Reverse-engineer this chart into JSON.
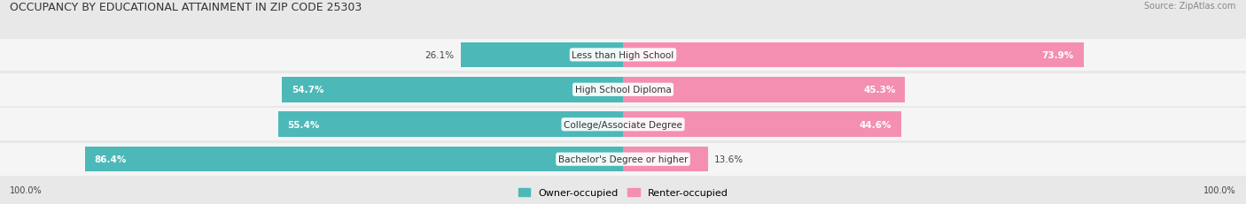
{
  "title": "OCCUPANCY BY EDUCATIONAL ATTAINMENT IN ZIP CODE 25303",
  "source": "Source: ZipAtlas.com",
  "categories": [
    "Less than High School",
    "High School Diploma",
    "College/Associate Degree",
    "Bachelor's Degree or higher"
  ],
  "owner_pct": [
    26.1,
    54.7,
    55.4,
    86.4
  ],
  "renter_pct": [
    73.9,
    45.3,
    44.6,
    13.6
  ],
  "owner_color": "#4db8b8",
  "renter_color": "#f48fb1",
  "fig_bg_color": "#e8e8e8",
  "row_bg_color": "#f5f5f5",
  "title_fontsize": 9,
  "label_fontsize": 7.5,
  "pct_fontsize": 7.5,
  "tick_fontsize": 7,
  "legend_fontsize": 8,
  "figsize": [
    14.06,
    2.32
  ],
  "dpi": 100,
  "owner_label_dark_threshold": 30,
  "renter_label_dark_threshold": 30
}
